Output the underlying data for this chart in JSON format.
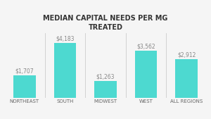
{
  "title": "MEDIAN CAPITAL NEEDS PER MG\nTREATED",
  "categories": [
    "NORTHEAST",
    "SOUTH",
    "MIDWEST",
    "WEST",
    "ALL REGIONS"
  ],
  "values": [
    1707,
    4183,
    1263,
    3562,
    2912
  ],
  "bar_labels": [
    "$1,707",
    "$4,183",
    "$1,263",
    "$3,562",
    "$2,912"
  ],
  "bar_color": "#4DD9D0",
  "background_color": "#f5f5f5",
  "title_fontsize": 7.0,
  "label_fontsize": 5.5,
  "tick_fontsize": 5.0,
  "ylim": [
    0,
    4900
  ],
  "bar_width": 0.55
}
